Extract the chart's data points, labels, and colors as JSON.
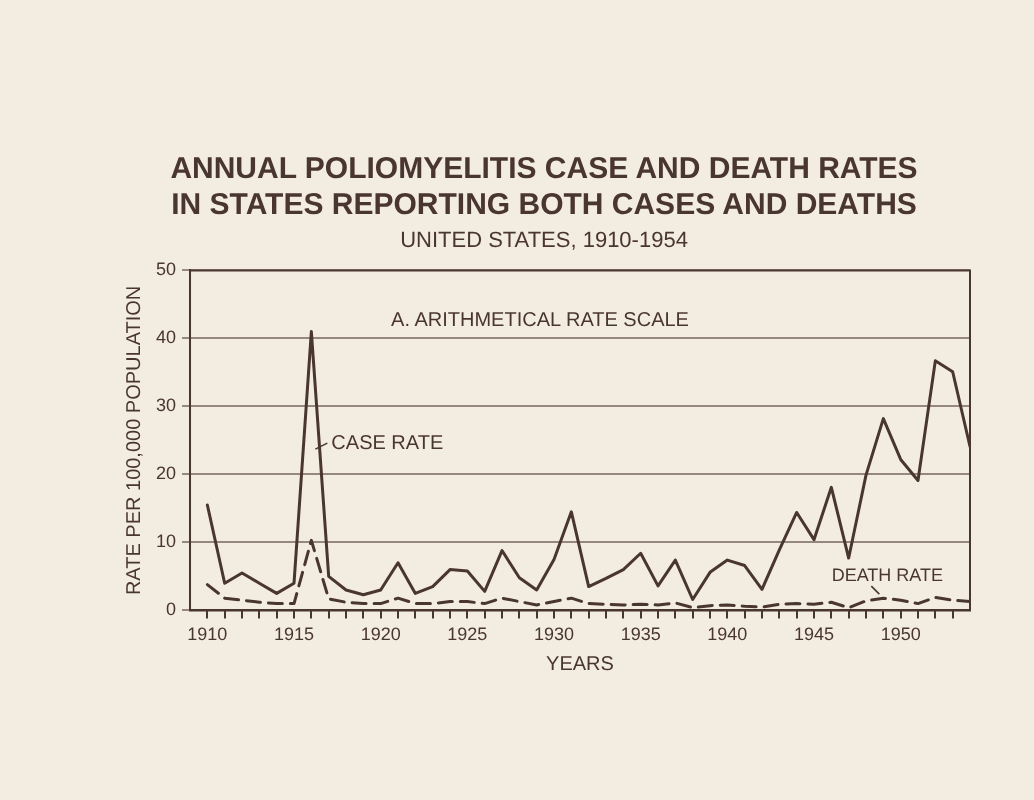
{
  "chart_data": {
    "type": "line",
    "title": [
      "ANNUAL POLIOMYELITIS CASE AND DEATH RATES",
      "IN STATES REPORTING BOTH CASES AND DEATHS"
    ],
    "subtitle": "UNITED STATES, 1910-1954",
    "xlabel": "YEARS",
    "ylabel": "RATE PER 100,000 POPULATION",
    "x": [
      1910,
      1911,
      1912,
      1913,
      1914,
      1915,
      1916,
      1917,
      1918,
      1919,
      1920,
      1921,
      1922,
      1923,
      1924,
      1925,
      1926,
      1927,
      1928,
      1929,
      1930,
      1931,
      1932,
      1933,
      1934,
      1935,
      1936,
      1937,
      1938,
      1939,
      1940,
      1941,
      1942,
      1943,
      1944,
      1945,
      1946,
      1947,
      1948,
      1949,
      1950,
      1951,
      1952,
      1953,
      1954
    ],
    "series": [
      {
        "name": "CASE RATE",
        "color": "#4a3630",
        "line_style": "solid",
        "values": [
          15.5,
          4,
          5.5,
          4,
          2.5,
          4,
          41,
          5,
          3,
          2.3,
          3,
          7,
          2.5,
          3.5,
          6,
          5.8,
          2.8,
          8.8,
          4.8,
          3,
          7.5,
          14.5,
          3.5,
          4.7,
          6,
          8.4,
          3.6,
          7.4,
          1.6,
          5.6,
          7.4,
          6.6,
          3.1,
          8.9,
          14.4,
          10.4,
          18.1,
          7.7,
          19.9,
          28.2,
          22.2,
          19.1,
          36.7,
          35.1,
          24.1
        ]
      },
      {
        "name": "DEATH RATE",
        "color": "#4a3630",
        "line_style": "dashed",
        "values": [
          3.8,
          1.8,
          1.5,
          1.2,
          1,
          1,
          10.3,
          1.7,
          1.2,
          1,
          1,
          1.8,
          1,
          1,
          1.3,
          1.3,
          1,
          1.8,
          1.3,
          0.8,
          1.3,
          1.8,
          1,
          0.9,
          0.8,
          0.9,
          0.8,
          1.1,
          0.4,
          0.7,
          0.8,
          0.6,
          0.5,
          0.9,
          1,
          0.9,
          1.2,
          0.4,
          1.4,
          1.8,
          1.5,
          1,
          1.9,
          1.5,
          1.3
        ]
      }
    ],
    "annotations": [
      "A. ARITHMETICAL RATE SCALE"
    ],
    "xlim": [
      1909,
      1954
    ],
    "xticks": [
      1910,
      {
        "value": 1911,
        "label": null
      },
      {
        "value": 1912,
        "label": null
      },
      {
        "value": 1913,
        "label": null
      },
      {
        "value": 1914,
        "label": null
      },
      1915,
      {
        "value": 1916,
        "label": null
      },
      {
        "value": 1917,
        "label": null
      },
      {
        "value": 1918,
        "label": null
      },
      {
        "value": 1919,
        "label": null
      },
      1920,
      {
        "value": 1921,
        "label": null
      },
      {
        "value": 1922,
        "label": null
      },
      {
        "value": 1923,
        "label": null
      },
      {
        "value": 1924,
        "label": null
      },
      1925,
      {
        "value": 1926,
        "label": null
      },
      {
        "value": 1927,
        "label": null
      },
      {
        "value": 1928,
        "label": null
      },
      {
        "value": 1929,
        "label": null
      },
      1930,
      {
        "value": 1931,
        "label": null
      },
      {
        "value": 1932,
        "label": null
      },
      {
        "value": 1933,
        "label": null
      },
      {
        "value": 1934,
        "label": null
      },
      1935,
      {
        "value": 1936,
        "label": null
      },
      {
        "value": 1937,
        "label": null
      },
      {
        "value": 1938,
        "label": null
      },
      {
        "value": 1939,
        "label": null
      },
      1940,
      {
        "value": 1941,
        "label": null
      },
      {
        "value": 1942,
        "label": null
      },
      {
        "value": 1943,
        "label": null
      },
      {
        "value": 1944,
        "label": null
      },
      1945,
      {
        "value": 1946,
        "label": null
      },
      {
        "value": 1947,
        "label": null
      },
      {
        "value": 1948,
        "label": null
      },
      {
        "value": 1949,
        "label": null
      },
      1950,
      {
        "value": 1951,
        "label": null
      },
      {
        "value": 1952,
        "label": null
      },
      {
        "value": 1953,
        "label": null
      }
    ],
    "ylim": [
      0,
      50
    ],
    "yticks": [
      0,
      10,
      20,
      30,
      40,
      50
    ],
    "grid": "y",
    "marker": "none"
  }
}
